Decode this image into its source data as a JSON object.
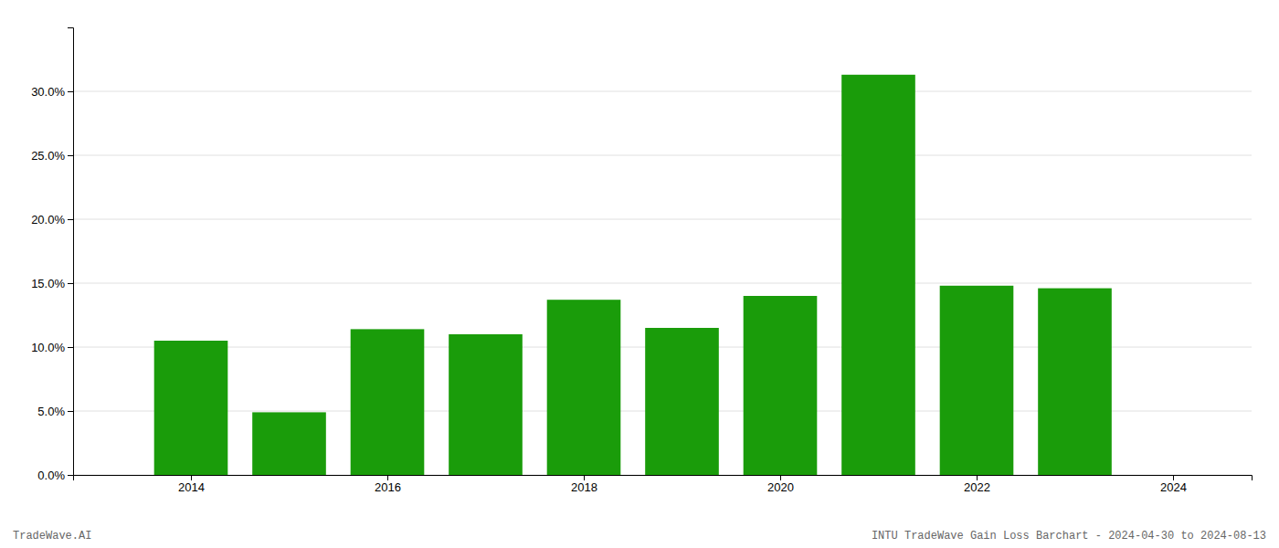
{
  "chart_data": {
    "type": "bar",
    "x": [
      2014,
      2015,
      2016,
      2017,
      2018,
      2019,
      2020,
      2021,
      2022,
      2023
    ],
    "values": [
      0.105,
      0.049,
      0.114,
      0.11,
      0.137,
      0.115,
      0.14,
      0.313,
      0.148,
      0.146
    ],
    "color": "#1a9c0a",
    "xlim": [
      2012.8,
      2024.8
    ],
    "xticks": [
      2014,
      2016,
      2018,
      2020,
      2022,
      2024
    ],
    "ylim": [
      0,
      0.35
    ],
    "yticks": [
      {
        "value": 0.0,
        "label": "0.0%"
      },
      {
        "value": 0.05,
        "label": "5.0%"
      },
      {
        "value": 0.1,
        "label": "10.0%"
      },
      {
        "value": 0.15,
        "label": "15.0%"
      },
      {
        "value": 0.2,
        "label": "20.0%"
      },
      {
        "value": 0.25,
        "label": "25.0%"
      },
      {
        "value": 0.3,
        "label": "30.0%"
      }
    ],
    "grid": true,
    "annotations": [
      "TradeWave.AI",
      "INTU TradeWave Gain Loss Barchart - 2024-04-30 to 2024-08-13"
    ]
  }
}
